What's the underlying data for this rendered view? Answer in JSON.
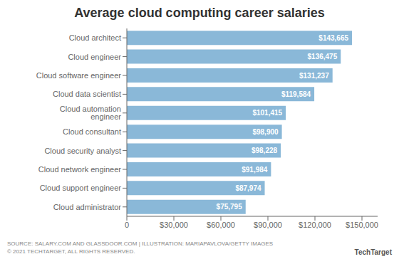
{
  "chart_data": {
    "type": "bar",
    "orientation": "horizontal",
    "title": "Average cloud computing career salaries",
    "categories": [
      "Cloud administrator",
      "Cloud support engineer",
      "Cloud network engineer",
      "Cloud security analyst",
      "Cloud consultant",
      "Cloud automation engineer",
      "Cloud data scientist",
      "Cloud software engineer",
      "Cloud engineer",
      "Cloud architect"
    ],
    "values": [
      75795,
      87974,
      91984,
      98228,
      98900,
      101415,
      119584,
      131237,
      136475,
      143665
    ],
    "value_labels": [
      "$75,795",
      "$87,974",
      "$91,984",
      "$98,228",
      "$98,900",
      "$101,415",
      "$119,584",
      "$131,237",
      "$136,475",
      "$143,665"
    ],
    "data_labels": true,
    "color": "#8ab8d8",
    "xlim": [
      0,
      160000
    ],
    "xticks": [
      0,
      {
        "value": 30000,
        "label": "$30,000"
      },
      {
        "value": 60000,
        "label": "$60,000"
      },
      {
        "value": 90000,
        "label": "$90,000"
      },
      {
        "value": 120000,
        "label": "$120,000"
      },
      {
        "value": 150000,
        "label": "$150,000"
      }
    ],
    "grid": false,
    "annotations": [
      "SOURCE: SALARY.COM AND GLASSDOOR.COM | ILLUSTRATION: MARIAPAVLOVA/GETTY IMAGES",
      "© 2021 TECHTARGET, ALL RIGHTS RESERVED.",
      "TechTarget"
    ]
  }
}
